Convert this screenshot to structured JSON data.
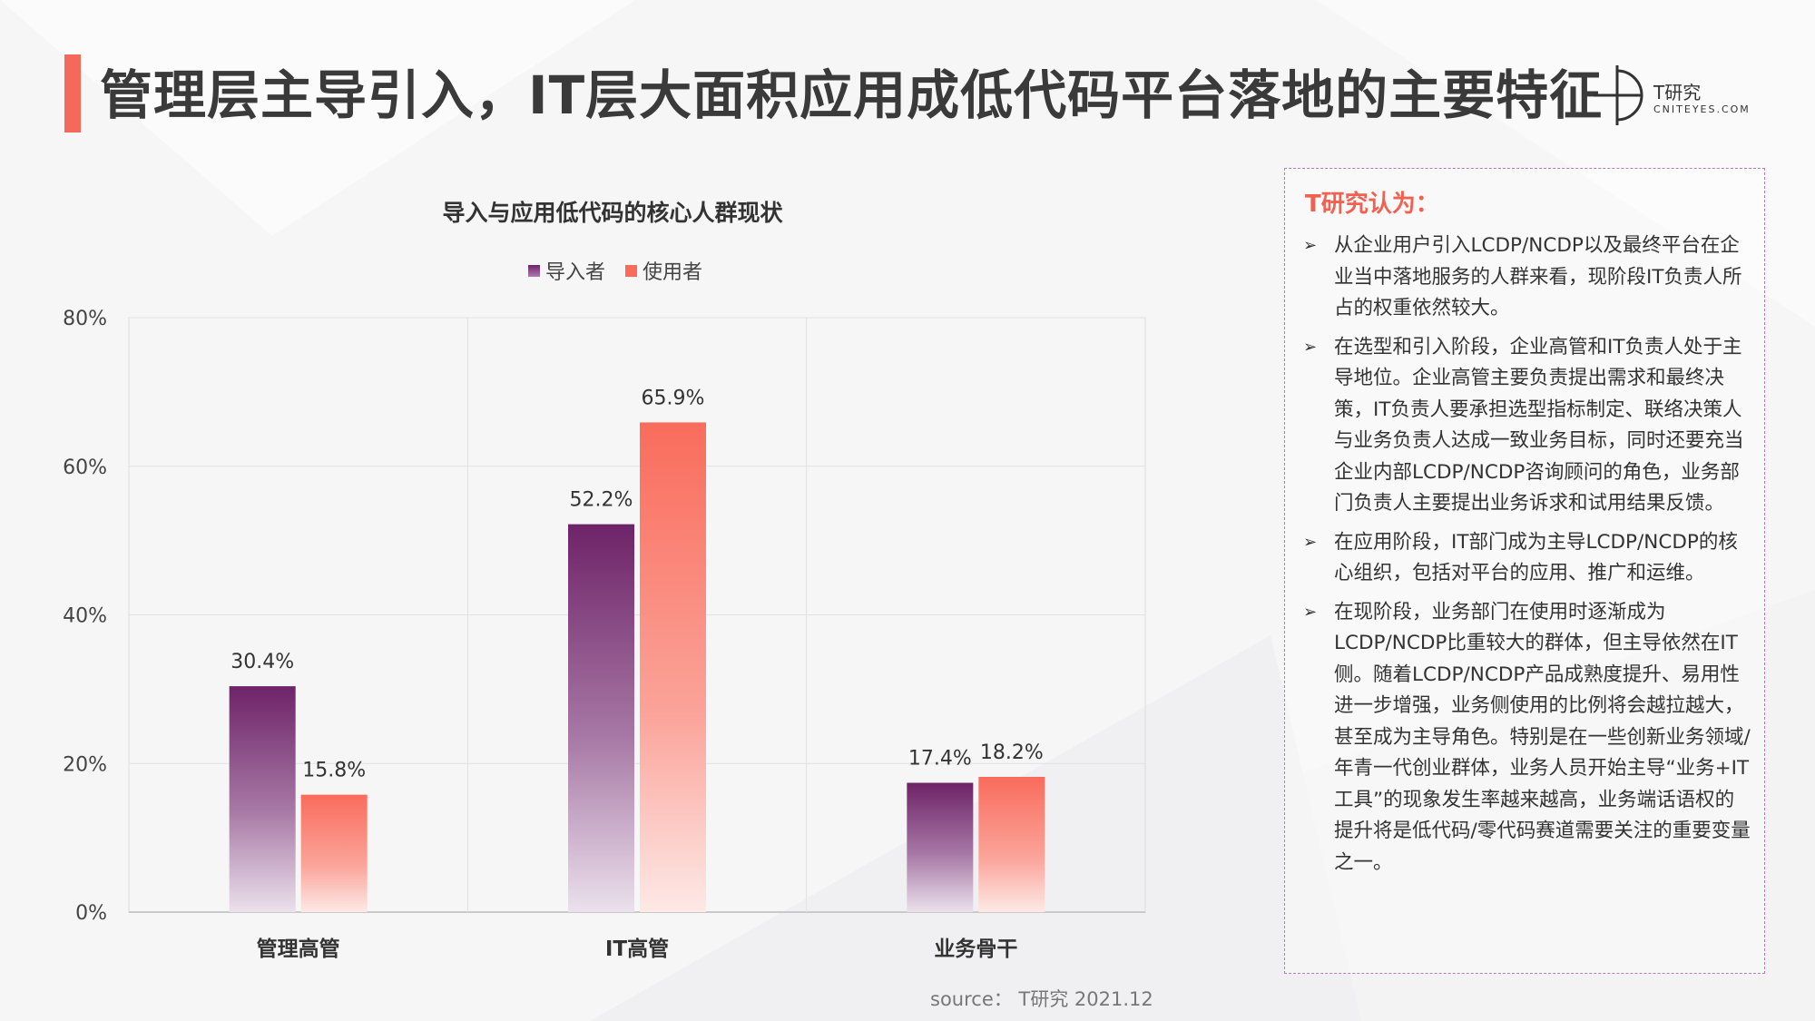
{
  "page": {
    "title": "管理层主导引入，IT层大面积应用成低代码平台落地的主要特征",
    "source": "source： T研究 2021.12",
    "accent_color": "#f4695a"
  },
  "logo": {
    "name_cn": "T研究",
    "name_en": "CNITEYES.COM",
    "icon": "crosshair-logo-icon"
  },
  "chart_data": {
    "type": "bar",
    "title": "导入与应用低代码的核心人群现状",
    "categories": [
      "管理高管",
      "IT高管",
      "业务骨干"
    ],
    "series": [
      {
        "name": "导入者",
        "values": [
          30.4,
          52.2,
          17.4
        ],
        "color": "#6e2368",
        "labels": [
          "30.4%",
          "52.2%",
          "17.4%"
        ]
      },
      {
        "name": "使用者",
        "values": [
          15.8,
          65.9,
          18.2
        ],
        "color": "#f96c5c",
        "labels": [
          "15.8%",
          "65.9%",
          "18.2%"
        ]
      }
    ],
    "ylim": [
      0,
      80
    ],
    "yticks": [
      "0%",
      "20%",
      "40%",
      "60%",
      "80%"
    ],
    "ytick_values": [
      0,
      20,
      40,
      60,
      80
    ],
    "xlabel": "",
    "ylabel": "",
    "legend_position": "top-center",
    "grid": true
  },
  "panel": {
    "heading": "T研究认为：",
    "bullet_icon": "chevron-right-icon",
    "bullets": [
      "从企业用户引入LCDP/NCDP以及最终平台在企业当中落地服务的人群来看，现阶段IT负责人所占的权重依然较大。",
      "在选型和引入阶段，企业高管和IT负责人处于主导地位。企业高管主要负责提出需求和最终决策，IT负责人要承担选型指标制定、联络决策人与业务负责人达成一致业务目标，同时还要充当企业内部LCDP/NCDP咨询顾问的角色，业务部门负责人主要提出业务诉求和试用结果反馈。",
      "在应用阶段，IT部门成为主导LCDP/NCDP的核心组织，包括对平台的应用、推广和运维。",
      "在现阶段，业务部门在使用时逐渐成为LCDP/NCDP比重较大的群体，但主导依然在IT侧。随着LCDP/NCDP产品成熟度提升、易用性进一步增强，业务侧使用的比例将会越拉越大，甚至成为主导角色。特别是在一些创新业务领域/年青一代创业群体，业务人员开始主导“业务+IT工具”的现象发生率越来越高，业务端话语权的提升将是低代码/零代码赛道需要关注的重要变量之一。"
    ]
  }
}
